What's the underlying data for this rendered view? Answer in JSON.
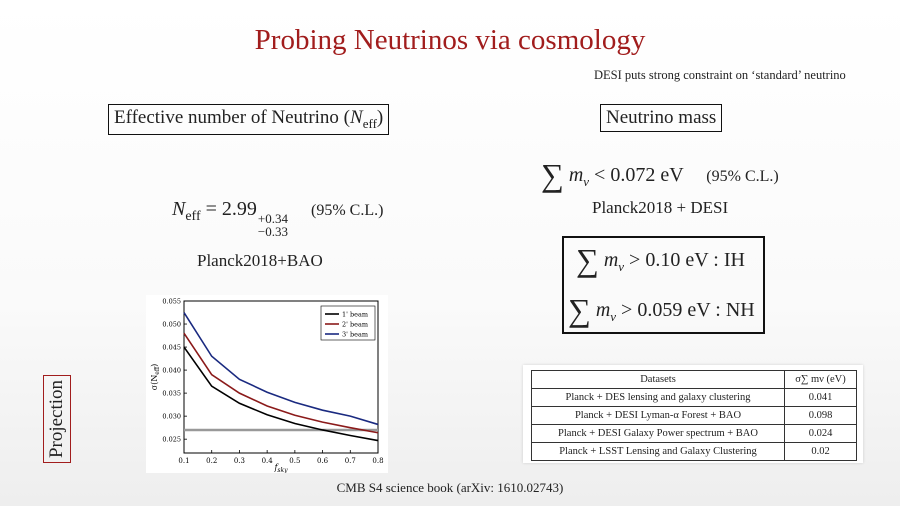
{
  "title": "Probing Neutrinos via cosmology",
  "note": "DESI puts strong constraint on ‘standard’ neutrino",
  "neff": {
    "heading_text": "Effective number of Neutrino (",
    "heading_sym": "N",
    "heading_sub": "eff",
    "heading_close": ")",
    "eq_lhs": "N",
    "eq_lhs_sub": "eff",
    "eq_rel": "= 2.99",
    "eq_sup": "+0.34",
    "eq_sub": "−0.33",
    "cl": "(95% C.L.)",
    "source": "Planck2018+BAO"
  },
  "mass": {
    "heading": "Neutrino mass",
    "sum": "∑",
    "m": "m",
    "nu": "ν",
    "bound": "< 0.072 eV",
    "cl": "(95% C.L.)",
    "source": "Planck2018 + DESI",
    "ih": "> 0.10 eV : IH",
    "nh": "> 0.059 eV : NH"
  },
  "projection": "Projection",
  "chart_data": {
    "type": "line",
    "xlabel": "f",
    "xlabel_sub": "sky",
    "ylabel": "σ(N",
    "ylabel_sub": "eff",
    "ylabel_close": ")",
    "xlim": [
      0.1,
      0.8
    ],
    "ylim": [
      0.022,
      0.055
    ],
    "x": [
      0.1,
      0.2,
      0.3,
      0.4,
      0.5,
      0.6,
      0.7,
      0.8
    ],
    "xticks": [
      "0.1",
      "0.2",
      "0.3",
      "0.4",
      "0.5",
      "0.6",
      "0.7",
      "0.8"
    ],
    "yticks": [
      "0.025",
      "0.030",
      "0.035",
      "0.040",
      "0.045",
      "0.050",
      "0.055"
    ],
    "ytick_values": [
      0.025,
      0.03,
      0.035,
      0.04,
      0.045,
      0.05,
      0.055
    ],
    "reference_line": 0.027,
    "reference_color": "#999999",
    "legend_position": "top-right",
    "series": [
      {
        "name": "1' beam",
        "color": "#000000",
        "values": [
          0.045,
          0.0365,
          0.0328,
          0.0303,
          0.0284,
          0.027,
          0.0258,
          0.0247
        ]
      },
      {
        "name": "2' beam",
        "color": "#8b1a1a",
        "values": [
          0.048,
          0.039,
          0.035,
          0.0322,
          0.0302,
          0.0287,
          0.0275,
          0.0264
        ]
      },
      {
        "name": "3' beam",
        "color": "#1a2a80",
        "values": [
          0.0525,
          0.043,
          0.038,
          0.0352,
          0.033,
          0.0313,
          0.03,
          0.0282
        ]
      }
    ]
  },
  "table": {
    "header_left": "Datasets",
    "header_right": "σ∑ mν (eV)",
    "rows": [
      {
        "d": "Planck + DES lensing and galaxy clustering",
        "v": "0.041"
      },
      {
        "d": "Planck + DESI Lyman-α Forest + BAO",
        "v": "0.098"
      },
      {
        "d": "Planck + DESI Galaxy Power spectrum + BAO",
        "v": "0.024"
      },
      {
        "d": "Planck + LSST Lensing and Galaxy Clustering",
        "v": "0.02"
      }
    ]
  },
  "citation": "CMB S4 science book (arXiv: 1610.02743)"
}
